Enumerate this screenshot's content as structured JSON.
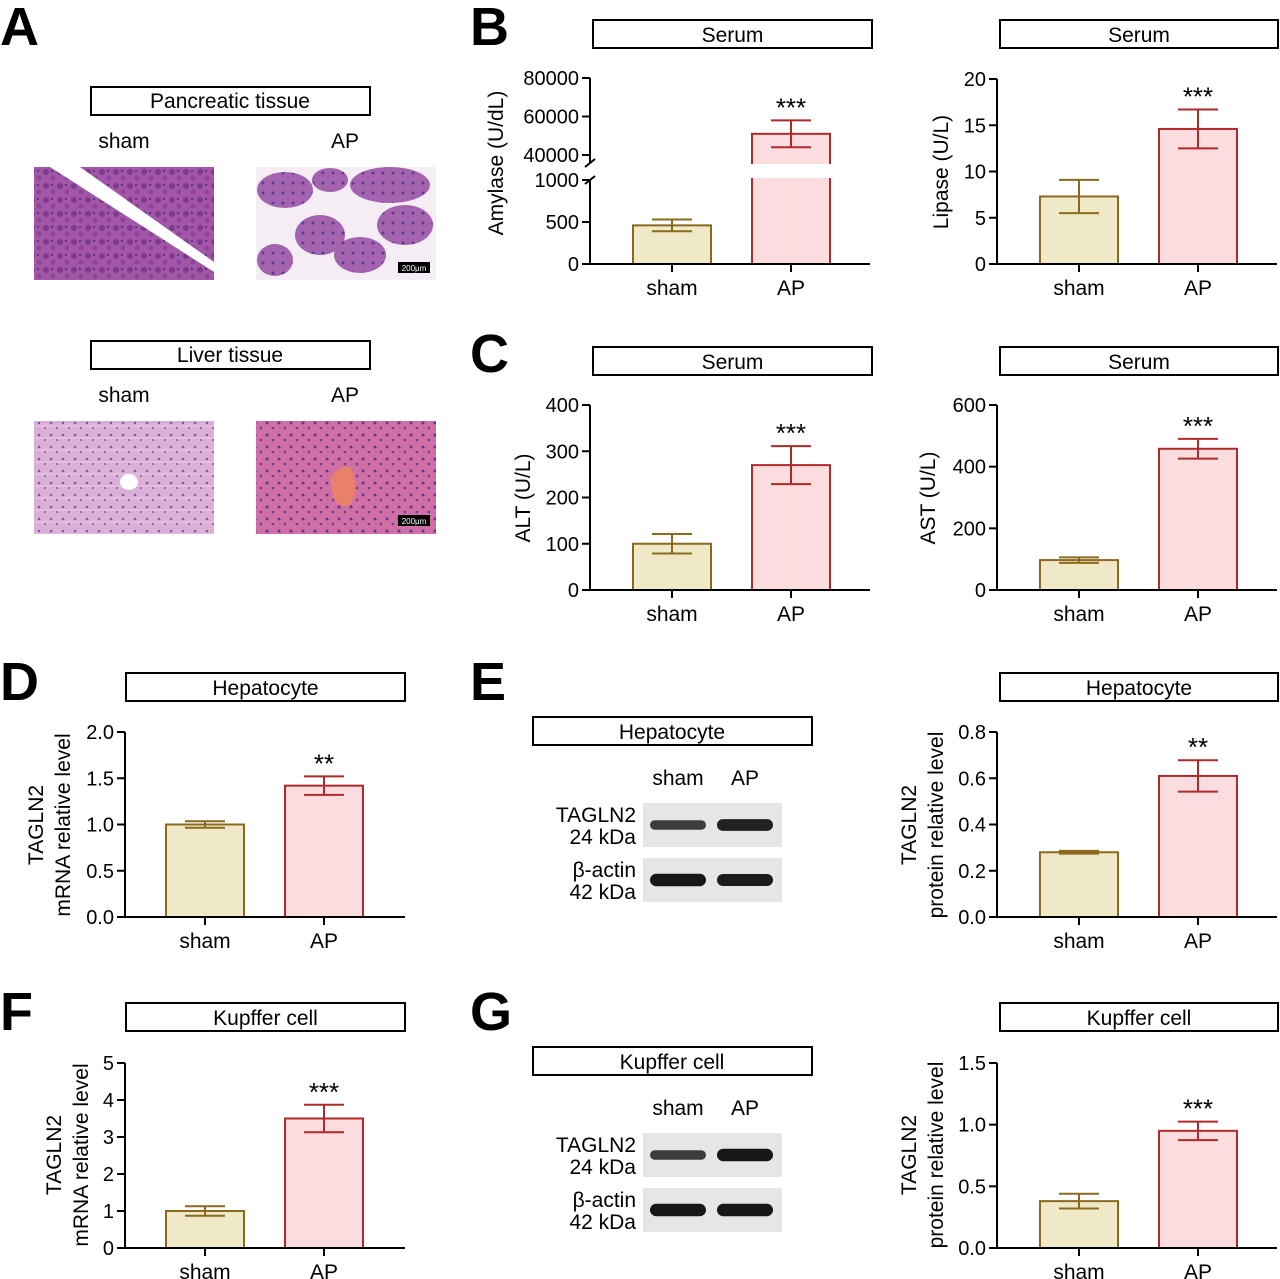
{
  "panel_letters": [
    "A",
    "B",
    "C",
    "D",
    "E",
    "F",
    "G"
  ],
  "panel_a": {
    "pancreas_title": "Pancreatic tissue",
    "liver_title": "Liver tissue",
    "group_labels": [
      "sham",
      "AP"
    ],
    "scale_bar": "200μm"
  },
  "blots": [
    {
      "title": "Hepatocyte",
      "lanes": [
        "sham",
        "AP"
      ],
      "rows": [
        {
          "name": "TAGLN2",
          "size": "24 kDa"
        },
        {
          "name": "β-actin",
          "size": "42 kDa"
        }
      ],
      "band_intensity": [
        [
          0.6,
          0.85
        ],
        [
          0.95,
          0.9
        ]
      ]
    },
    {
      "title": "Kupffer cell",
      "lanes": [
        "sham",
        "AP"
      ],
      "rows": [
        {
          "name": "TAGLN2",
          "size": "24 kDa"
        },
        {
          "name": "β-actin",
          "size": "42 kDa"
        }
      ],
      "band_intensity": [
        [
          0.6,
          0.95
        ],
        [
          0.95,
          0.95
        ]
      ]
    }
  ],
  "colors": {
    "sham_fill": "#efe9c8",
    "sham_stroke": "#8b6a1f",
    "ap_fill": "#fbdde0",
    "ap_stroke": "#b02a2a"
  },
  "chart_data": [
    {
      "type": "bar",
      "panel": "B",
      "title": "Serum",
      "ylabel": [
        "Amylase (U/dL)"
      ],
      "categories": [
        "sham",
        "AP"
      ],
      "values": [
        460,
        51000
      ],
      "errors": [
        70,
        7000
      ],
      "significance": [
        "",
        "***"
      ],
      "yticks": [
        0,
        500,
        1000,
        40000,
        60000,
        80000
      ],
      "ylim": [
        0,
        80000
      ],
      "axis_break": [
        1000,
        40000
      ]
    },
    {
      "type": "bar",
      "panel": "B",
      "title": "Serum",
      "ylabel": [
        "Lipase (U/L)"
      ],
      "categories": [
        "sham",
        "AP"
      ],
      "values": [
        7.3,
        14.6
      ],
      "errors": [
        1.8,
        2.1
      ],
      "significance": [
        "",
        "***"
      ],
      "yticks": [
        0,
        5,
        10,
        15,
        20
      ],
      "ylim": [
        0,
        20
      ]
    },
    {
      "type": "bar",
      "panel": "C",
      "title": "Serum",
      "ylabel": [
        "ALT (U/L)"
      ],
      "categories": [
        "sham",
        "AP"
      ],
      "values": [
        100,
        270
      ],
      "errors": [
        21,
        41
      ],
      "significance": [
        "",
        "***"
      ],
      "yticks": [
        0,
        100,
        200,
        300,
        400
      ],
      "ylim": [
        0,
        400
      ]
    },
    {
      "type": "bar",
      "panel": "C",
      "title": "Serum",
      "ylabel": [
        "AST (U/L)"
      ],
      "categories": [
        "sham",
        "AP"
      ],
      "values": [
        97,
        458
      ],
      "errors": [
        9,
        32
      ],
      "significance": [
        "",
        "***"
      ],
      "yticks": [
        0,
        200,
        400,
        600
      ],
      "ylim": [
        0,
        600
      ]
    },
    {
      "type": "bar",
      "panel": "D",
      "title": "Hepatocyte",
      "ylabel": [
        "TAGLN2",
        "mRNA relative level"
      ],
      "categories": [
        "sham",
        "AP"
      ],
      "values": [
        1.0,
        1.42
      ],
      "errors": [
        0.035,
        0.1
      ],
      "significance": [
        "",
        "**"
      ],
      "yticks": [
        "0.0",
        "0.5",
        "1.0",
        "1.5",
        "2.0"
      ],
      "ylim": [
        0,
        2
      ]
    },
    {
      "type": "bar",
      "panel": "E",
      "title": "Hepatocyte",
      "ylabel": [
        "TAGLN2",
        "protein relative level"
      ],
      "categories": [
        "sham",
        "AP"
      ],
      "values": [
        0.28,
        0.61
      ],
      "errors": [
        0.006,
        0.068
      ],
      "significance": [
        "",
        "**"
      ],
      "yticks": [
        "0.0",
        "0.2",
        "0.4",
        "0.6",
        "0.8"
      ],
      "ylim": [
        0,
        0.8
      ]
    },
    {
      "type": "bar",
      "panel": "F",
      "title": "Kupffer cell",
      "ylabel": [
        "TAGLN2",
        "mRNA relative level"
      ],
      "categories": [
        "sham",
        "AP"
      ],
      "values": [
        1.0,
        3.5
      ],
      "errors": [
        0.13,
        0.37
      ],
      "significance": [
        "",
        "***"
      ],
      "yticks": [
        "0",
        "1",
        "2",
        "3",
        "4",
        "5"
      ],
      "ylim": [
        0,
        5
      ]
    },
    {
      "type": "bar",
      "panel": "G",
      "title": "Kupffer cell",
      "ylabel": [
        "TAGLN2",
        "protein relative level"
      ],
      "categories": [
        "sham",
        "AP"
      ],
      "values": [
        0.38,
        0.95
      ],
      "errors": [
        0.06,
        0.075
      ],
      "significance": [
        "",
        "***"
      ],
      "yticks": [
        "0.0",
        "0.5",
        "1.0",
        "1.5"
      ],
      "ylim": [
        0,
        1.5
      ]
    }
  ]
}
